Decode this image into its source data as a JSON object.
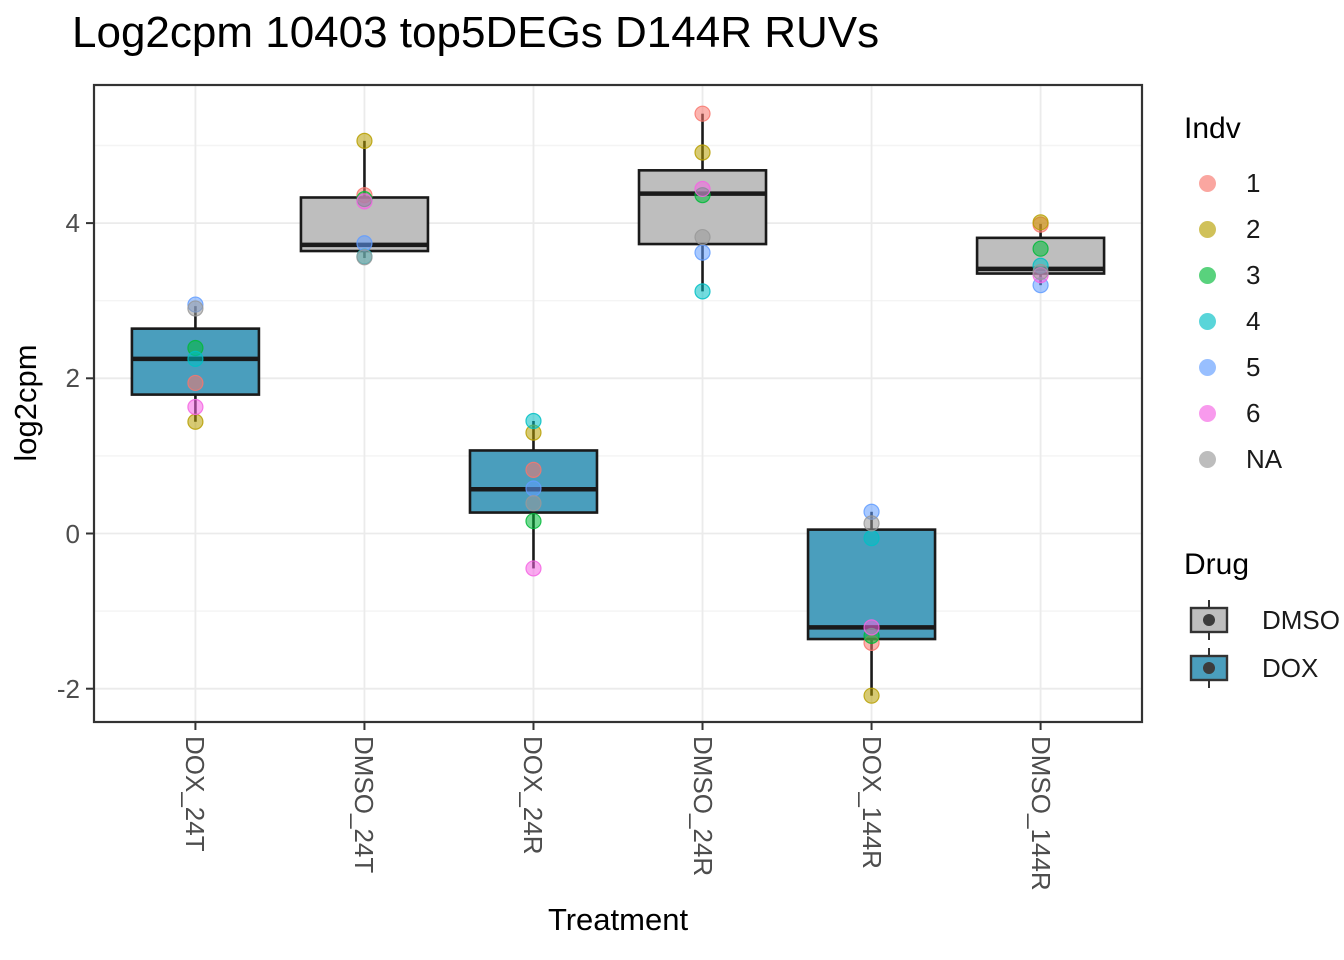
{
  "title": "Log2cpm 10403 top5DEGs D144R RUVs",
  "chart_data": {
    "type": "boxplot",
    "title": "Log2cpm 10403 top5DEGs D144R RUVs",
    "xlabel": "Treatment",
    "ylabel": "log2cpm",
    "categories": [
      "DOX_24T",
      "DMSO_24T",
      "DOX_24R",
      "DMSO_24R",
      "DOX_144R",
      "DMSO_144R"
    ],
    "y_major_ticks": [
      4,
      2,
      0,
      -2
    ],
    "y_minor_ticks": [
      5,
      3,
      1,
      -1
    ],
    "ylim": [
      -2.43,
      5.78
    ],
    "grid": true,
    "legend_position": "right",
    "boxes": [
      {
        "category": "DOX_24T",
        "drug": "DOX",
        "q1": 1.79,
        "median": 2.25,
        "q3": 2.64,
        "whisker_low": 1.44,
        "whisker_high": 2.93,
        "points": [
          {
            "indv": "1",
            "value": 1.94
          },
          {
            "indv": "2",
            "value": 1.44
          },
          {
            "indv": "3",
            "value": 2.39
          },
          {
            "indv": "4",
            "value": 2.25
          },
          {
            "indv": "5",
            "value": 2.95
          },
          {
            "indv": "6",
            "value": 1.63
          },
          {
            "indv": "NA",
            "value": 2.9
          }
        ]
      },
      {
        "category": "DMSO_24T",
        "drug": "DMSO",
        "q1": 3.64,
        "median": 3.72,
        "q3": 4.33,
        "whisker_low": 3.55,
        "whisker_high": 5.06,
        "points": [
          {
            "indv": "1",
            "value": 4.36
          },
          {
            "indv": "2",
            "value": 5.06
          },
          {
            "indv": "3",
            "value": 4.31
          },
          {
            "indv": "4",
            "value": 3.57
          },
          {
            "indv": "5",
            "value": 3.74
          },
          {
            "indv": "6",
            "value": 4.28
          },
          {
            "indv": "NA",
            "value": 3.56
          }
        ]
      },
      {
        "category": "DOX_24R",
        "drug": "DOX",
        "q1": 0.27,
        "median": 0.57,
        "q3": 1.07,
        "whisker_low": -0.45,
        "whisker_high": 1.45,
        "points": [
          {
            "indv": "1",
            "value": 0.82
          },
          {
            "indv": "2",
            "value": 1.3
          },
          {
            "indv": "3",
            "value": 0.16
          },
          {
            "indv": "4",
            "value": 1.45
          },
          {
            "indv": "5",
            "value": 0.58
          },
          {
            "indv": "6",
            "value": -0.45
          },
          {
            "indv": "NA",
            "value": 0.39
          }
        ]
      },
      {
        "category": "DMSO_24R",
        "drug": "DMSO",
        "q1": 3.73,
        "median": 4.38,
        "q3": 4.68,
        "whisker_low": 3.12,
        "whisker_high": 5.41,
        "points": [
          {
            "indv": "1",
            "value": 5.41
          },
          {
            "indv": "2",
            "value": 4.91
          },
          {
            "indv": "3",
            "value": 4.36
          },
          {
            "indv": "4",
            "value": 3.12
          },
          {
            "indv": "5",
            "value": 3.62
          },
          {
            "indv": "6",
            "value": 4.44
          },
          {
            "indv": "NA",
            "value": 3.82
          }
        ]
      },
      {
        "category": "DOX_144R",
        "drug": "DOX",
        "q1": -1.36,
        "median": -1.21,
        "q3": 0.05,
        "whisker_low": -2.09,
        "whisker_high": 0.28,
        "points": [
          {
            "indv": "1",
            "value": -1.41
          },
          {
            "indv": "2",
            "value": -2.09
          },
          {
            "indv": "3",
            "value": -1.32
          },
          {
            "indv": "4",
            "value": -0.06
          },
          {
            "indv": "5",
            "value": 0.28
          },
          {
            "indv": "6",
            "value": -1.21
          },
          {
            "indv": "NA",
            "value": 0.13
          }
        ]
      },
      {
        "category": "DMSO_144R",
        "drug": "DMSO",
        "q1": 3.35,
        "median": 3.41,
        "q3": 3.81,
        "whisker_low": 3.2,
        "whisker_high": 3.99,
        "points": [
          {
            "indv": "1",
            "value": 3.98
          },
          {
            "indv": "2",
            "value": 4.01
          },
          {
            "indv": "3",
            "value": 3.67
          },
          {
            "indv": "4",
            "value": 3.45
          },
          {
            "indv": "5",
            "value": 3.2
          },
          {
            "indv": "6",
            "value": 3.33
          },
          {
            "indv": "NA",
            "value": 3.37
          }
        ]
      }
    ]
  },
  "legend": {
    "indv": {
      "title": "Indv",
      "items": [
        {
          "label": "1",
          "color": "#F8766D"
        },
        {
          "label": "2",
          "color": "#B79F00"
        },
        {
          "label": "3",
          "color": "#00BA38"
        },
        {
          "label": "4",
          "color": "#00BFC4"
        },
        {
          "label": "5",
          "color": "#619CFF"
        },
        {
          "label": "6",
          "color": "#F564E3"
        },
        {
          "label": "NA",
          "color": "#999999"
        }
      ]
    },
    "drug": {
      "title": "Drug",
      "items": [
        {
          "label": "DMSO",
          "color": "#BEBEBE"
        },
        {
          "label": "DOX",
          "color": "#4A9EBD"
        }
      ]
    }
  },
  "colors": {
    "panel_border": "#333333",
    "box_stroke": "#1a1a1a",
    "grid_major": "#ebebeb",
    "grid_minor": "#f4f4f4",
    "tick_text": "#4d4d4d"
  }
}
